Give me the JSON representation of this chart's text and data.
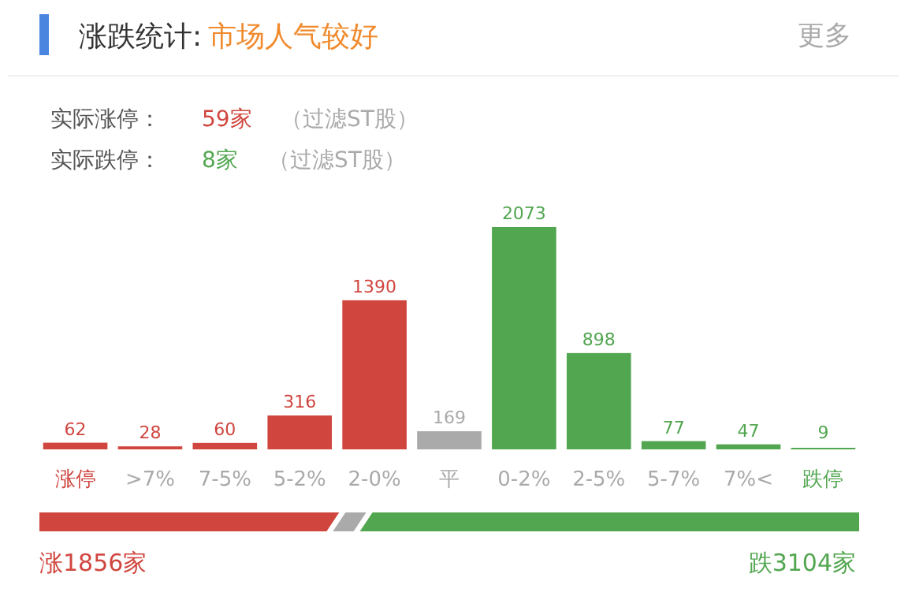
{
  "chart_data": {
    "type": "bar",
    "title": "涨跌统计:",
    "subtitle": "市场人气较好",
    "categories": [
      "涨停",
      ">7%",
      "7-5%",
      "5-2%",
      "2-0%",
      "平",
      "0-2%",
      "2-5%",
      "5-7%",
      "7%<",
      "跌停"
    ],
    "values": [
      62,
      28,
      60,
      316,
      1390,
      169,
      2073,
      898,
      77,
      47,
      9
    ],
    "colors": [
      "#d0463f",
      "#d0463f",
      "#d0463f",
      "#d0463f",
      "#d0463f",
      "#aaaaaa",
      "#52a650",
      "#52a650",
      "#52a650",
      "#52a650",
      "#52a650"
    ],
    "data_labels": true,
    "annotations": [
      "更多",
      "实际涨停：",
      "59家",
      "（过滤ST股）",
      "实际跌停：",
      "8家",
      "（过滤ST股）",
      "涨1856家",
      "跌3104家"
    ]
  }
}
